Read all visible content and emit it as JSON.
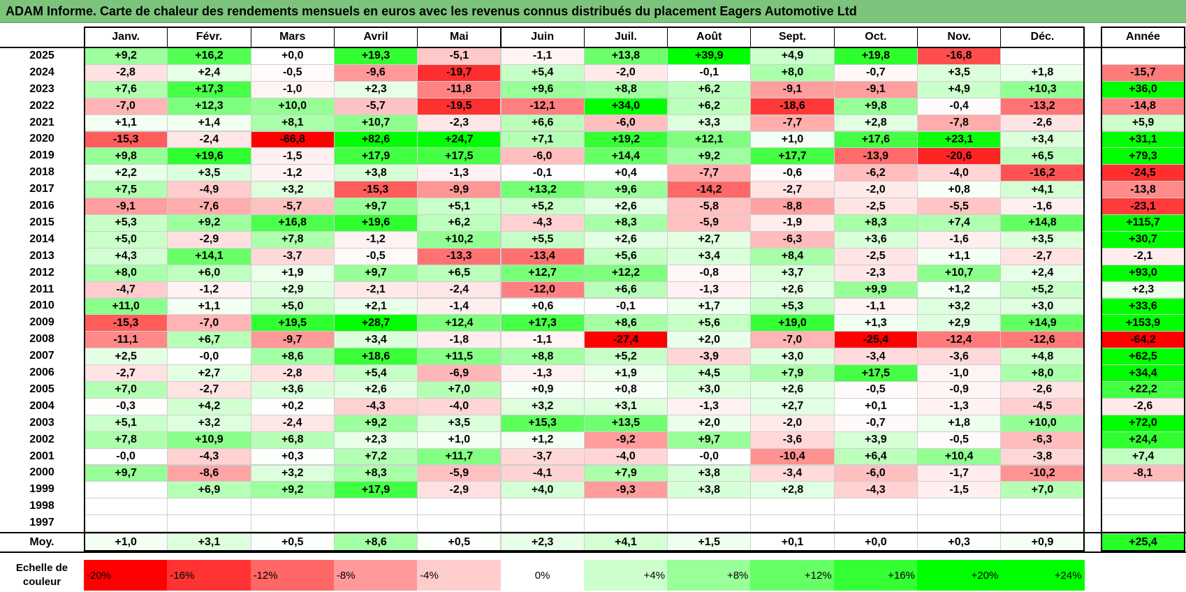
{
  "title": "ADAM Informe. Carte de chaleur des rendements mensuels en euros avec les revenus connus distribués du placement Eagers Automotive Ltd",
  "chart_data": {
    "type": "heatmap",
    "title": "ADAM Informe. Carte de chaleur des rendements mensuels en euros avec les revenus connus distribués du placement Eagers Automotive Ltd",
    "months": [
      "Janv.",
      "Févr.",
      "Mars",
      "Avril",
      "Mai",
      "Juin",
      "Juil.",
      "Août",
      "Sept.",
      "Oct.",
      "Nov.",
      "Déc."
    ],
    "year_header": "Année",
    "rows": [
      {
        "year": "2025",
        "values": [
          "+9,2",
          "+16,2",
          "+0,0",
          "+19,3",
          "-5,1",
          "-1,1",
          "+13,8",
          "+39,9",
          "+4,9",
          "+19,8",
          "-16,8",
          ""
        ],
        "annual": ""
      },
      {
        "year": "2024",
        "values": [
          "-2,8",
          "+2,4",
          "-0,5",
          "-9,6",
          "-19,7",
          "+5,4",
          "-2,0",
          "-0,1",
          "+8,0",
          "-0,7",
          "+3,5",
          "+1,8"
        ],
        "annual": "-15,7"
      },
      {
        "year": "2023",
        "values": [
          "+7,6",
          "+17,3",
          "-1,0",
          "+2,3",
          "-11,8",
          "+9,6",
          "+8,8",
          "+6,2",
          "-9,1",
          "-9,1",
          "+4,9",
          "+10,3"
        ],
        "annual": "+36,0"
      },
      {
        "year": "2022",
        "values": [
          "-7,0",
          "+12,3",
          "+10,0",
          "-5,7",
          "-19,5",
          "-12,1",
          "+34,0",
          "+6,2",
          "-18,6",
          "+9,8",
          "-0,4",
          "-13,2"
        ],
        "annual": "-14,8"
      },
      {
        "year": "2021",
        "values": [
          "+1,1",
          "+1,4",
          "+8,1",
          "+10,7",
          "-2,3",
          "+6,6",
          "-6,0",
          "+3,3",
          "-7,7",
          "+2,8",
          "-7,8",
          "-2,6"
        ],
        "annual": "+5,9"
      },
      {
        "year": "2020",
        "values": [
          "-15,3",
          "-2,4",
          "-66,8",
          "+82,6",
          "+24,7",
          "+7,1",
          "+19,2",
          "+12,1",
          "+1,0",
          "+17,6",
          "+23,1",
          "+3,4"
        ],
        "annual": "+31,1"
      },
      {
        "year": "2019",
        "values": [
          "+9,8",
          "+19,6",
          "-1,5",
          "+17,9",
          "+17,5",
          "-6,0",
          "+14,4",
          "+9,2",
          "+17,7",
          "-13,9",
          "-20,6",
          "+6,5"
        ],
        "annual": "+79,3"
      },
      {
        "year": "2018",
        "values": [
          "+2,2",
          "+3,5",
          "-1,2",
          "+3,8",
          "-1,3",
          "-0,1",
          "+0,4",
          "-7,7",
          "-0,6",
          "-6,2",
          "-4,0",
          "-16,2"
        ],
        "annual": "-24,5"
      },
      {
        "year": "2017",
        "values": [
          "+7,5",
          "-4,9",
          "+3,2",
          "-15,3",
          "-9,9",
          "+13,2",
          "+9,6",
          "-14,2",
          "-2,7",
          "-2,0",
          "+0,8",
          "+4,1"
        ],
        "annual": "-13,8"
      },
      {
        "year": "2016",
        "values": [
          "-9,1",
          "-7,6",
          "-5,7",
          "+9,7",
          "+5,1",
          "+5,2",
          "+2,6",
          "-5,8",
          "-8,8",
          "-2,5",
          "-5,5",
          "-1,6"
        ],
        "annual": "-23,1"
      },
      {
        "year": "2015",
        "values": [
          "+5,3",
          "+9,2",
          "+16,8",
          "+19,6",
          "+6,2",
          "-4,3",
          "+8,3",
          "-5,9",
          "-1,9",
          "+8,3",
          "+7,4",
          "+14,8"
        ],
        "annual": "+115,7"
      },
      {
        "year": "2014",
        "values": [
          "+5,0",
          "-2,9",
          "+7,8",
          "-1,2",
          "+10,2",
          "+5,5",
          "+2,6",
          "+2,7",
          "-6,3",
          "+3,6",
          "-1,6",
          "+3,5"
        ],
        "annual": "+30,7"
      },
      {
        "year": "2013",
        "values": [
          "+4,3",
          "+14,1",
          "-3,7",
          "-0,5",
          "-13,3",
          "-13,4",
          "+5,6",
          "+3,4",
          "+8,4",
          "-2,5",
          "+1,1",
          "-2,7"
        ],
        "annual": "-2,1"
      },
      {
        "year": "2012",
        "values": [
          "+8,0",
          "+6,0",
          "+1,9",
          "+9,7",
          "+6,5",
          "+12,7",
          "+12,2",
          "-0,8",
          "+3,7",
          "-2,3",
          "+10,7",
          "+2,4"
        ],
        "annual": "+93,0"
      },
      {
        "year": "2011",
        "values": [
          "-4,7",
          "-1,2",
          "+2,9",
          "-2,1",
          "-2,4",
          "-12,0",
          "+6,6",
          "-1,3",
          "+2,6",
          "+9,9",
          "+1,2",
          "+5,2"
        ],
        "annual": "+2,3"
      },
      {
        "year": "2010",
        "values": [
          "+11,0",
          "+1,1",
          "+5,0",
          "+2,1",
          "-1,4",
          "+0,6",
          "-0,1",
          "+1,7",
          "+5,3",
          "-1,1",
          "+3,2",
          "+3,0"
        ],
        "annual": "+33,6"
      },
      {
        "year": "2009",
        "values": [
          "-15,3",
          "-7,0",
          "+19,5",
          "+28,7",
          "+12,4",
          "+17,3",
          "+8,6",
          "+5,6",
          "+19,0",
          "+1,3",
          "+2,9",
          "+14,9"
        ],
        "annual": "+153,9"
      },
      {
        "year": "2008",
        "values": [
          "-11,1",
          "+6,7",
          "-9,7",
          "+3,4",
          "-1,8",
          "-1,1",
          "-27,4",
          "+2,0",
          "-7,0",
          "-25,4",
          "-12,4",
          "-12,6"
        ],
        "annual": "-64,2"
      },
      {
        "year": "2007",
        "values": [
          "+2,5",
          "-0,0",
          "+8,6",
          "+18,6",
          "+11,5",
          "+8,8",
          "+5,2",
          "-3,9",
          "+3,0",
          "-3,4",
          "-3,6",
          "+4,8"
        ],
        "annual": "+62,5"
      },
      {
        "year": "2006",
        "values": [
          "-2,7",
          "+2,7",
          "-2,8",
          "+5,4",
          "-6,9",
          "-1,3",
          "+1,9",
          "+4,5",
          "+7,9",
          "+17,5",
          "-1,0",
          "+8,0"
        ],
        "annual": "+34,4"
      },
      {
        "year": "2005",
        "values": [
          "+7,0",
          "-2,7",
          "+3,6",
          "+2,6",
          "+7,0",
          "+0,9",
          "+0,8",
          "+3,0",
          "+2,6",
          "-0,5",
          "-0,9",
          "-2,6"
        ],
        "annual": "+22,2"
      },
      {
        "year": "2004",
        "values": [
          "-0,3",
          "+4,2",
          "+0,2",
          "-4,3",
          "-4,0",
          "+3,2",
          "+3,1",
          "-1,3",
          "+2,7",
          "+0,1",
          "-1,3",
          "-4,5"
        ],
        "annual": "-2,6"
      },
      {
        "year": "2003",
        "values": [
          "+5,1",
          "+3,2",
          "-2,4",
          "+9,2",
          "+3,5",
          "+15,3",
          "+13,5",
          "+2,0",
          "-2,0",
          "-0,7",
          "+1,8",
          "+10,0"
        ],
        "annual": "+72,0"
      },
      {
        "year": "2002",
        "values": [
          "+7,8",
          "+10,9",
          "+6,8",
          "+2,3",
          "+1,0",
          "+1,2",
          "-9,2",
          "+9,7",
          "-3,6",
          "+3,9",
          "-0,5",
          "-6,3"
        ],
        "annual": "+24,4"
      },
      {
        "year": "2001",
        "values": [
          "-0,0",
          "-4,3",
          "+0,3",
          "+7,2",
          "+11,7",
          "-3,7",
          "-4,0",
          "-0,0",
          "-10,4",
          "+6,4",
          "+10,4",
          "-3,8"
        ],
        "annual": "+7,4"
      },
      {
        "year": "2000",
        "values": [
          "+9,7",
          "-8,6",
          "+3,2",
          "+8,3",
          "-5,9",
          "-4,1",
          "+7,9",
          "+3,8",
          "-3,4",
          "-6,0",
          "-1,7",
          "-10,2"
        ],
        "annual": "-8,1"
      },
      {
        "year": "1999",
        "values": [
          "",
          "+6,9",
          "+9,2",
          "+17,9",
          "-2,9",
          "+4,0",
          "-9,3",
          "+3,8",
          "+2,8",
          "-4,3",
          "-1,5",
          "+7,0"
        ],
        "annual": ""
      },
      {
        "year": "1998",
        "values": [
          "",
          "",
          "",
          "",
          "",
          "",
          "",
          "",
          "",
          "",
          "",
          ""
        ],
        "annual": ""
      },
      {
        "year": "1997",
        "values": [
          "",
          "",
          "",
          "",
          "",
          "",
          "",
          "",
          "",
          "",
          "",
          ""
        ],
        "annual": ""
      }
    ],
    "average": {
      "label": "Moy.",
      "values": [
        "+1,0",
        "+3,1",
        "+0,5",
        "+8,6",
        "+0,5",
        "+2,3",
        "+4,1",
        "+1,5",
        "+0,1",
        "+0,0",
        "+0,3",
        "+0,9"
      ],
      "annual": "+25,4"
    },
    "scale": {
      "label": "Echelle de couleur",
      "stops": [
        "-20%",
        "-16%",
        "-12%",
        "-8%",
        "-4%",
        "0%",
        "+4%",
        "+8%",
        "+12%",
        "+16%",
        "+20%",
        "+24%"
      ]
    }
  }
}
